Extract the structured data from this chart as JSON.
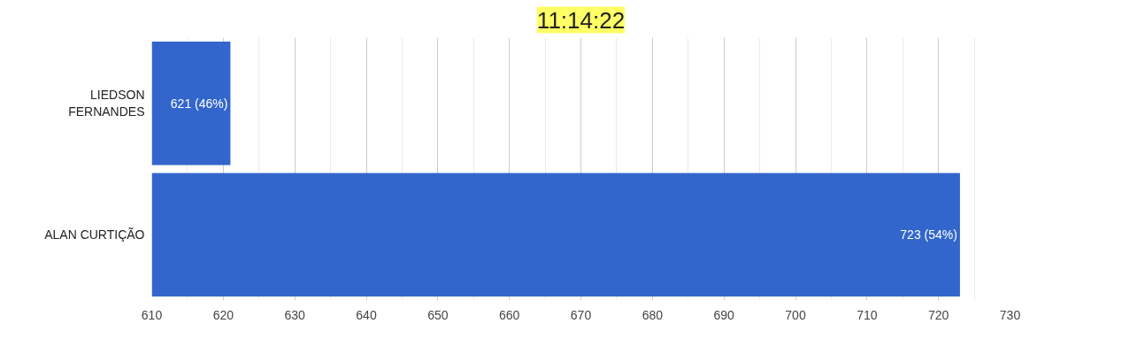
{
  "chart_data": {
    "type": "bar",
    "orientation": "horizontal",
    "title": "11:14:22",
    "categories": [
      "LIEDSON FERNANDES",
      "ALAN CURTIÇÃO"
    ],
    "values": [
      621,
      723
    ],
    "color": "#3366cc",
    "value_labels": [
      "621 (46%)",
      "723 (54%)"
    ],
    "xlim": [
      610,
      730
    ],
    "xticks": [
      610,
      {
        "value": 615,
        "label": null
      },
      620,
      {
        "value": 625,
        "label": null
      },
      630,
      {
        "value": 635,
        "label": null
      },
      640,
      {
        "value": 645,
        "label": null
      },
      650,
      {
        "value": 655,
        "label": null
      },
      660,
      {
        "value": 665,
        "label": null
      },
      670,
      {
        "value": 675,
        "label": null
      },
      680,
      {
        "value": 685,
        "label": null
      },
      690,
      {
        "value": 695,
        "label": null
      },
      700,
      {
        "value": 705,
        "label": null
      },
      710,
      {
        "value": 715,
        "label": null
      },
      720,
      {
        "value": 725,
        "label": null
      },
      730
    ],
    "grid": "x"
  }
}
